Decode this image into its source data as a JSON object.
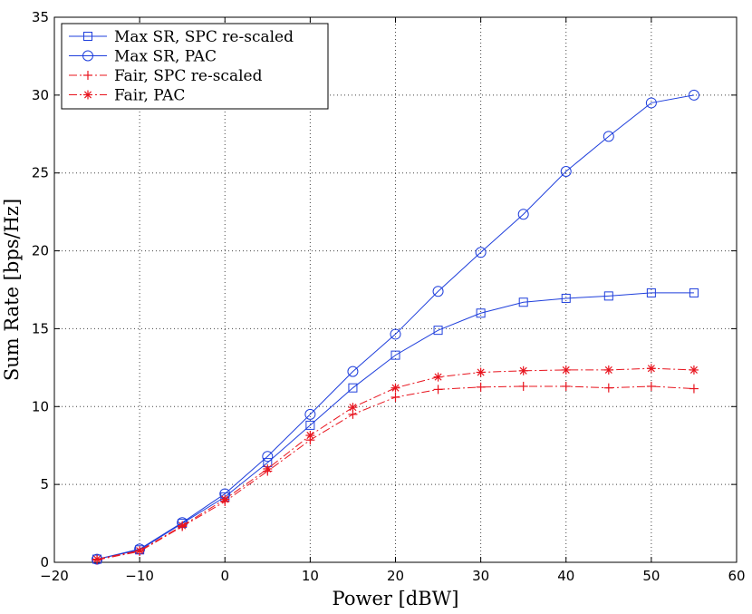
{
  "chart_data": {
    "type": "line",
    "title": "",
    "xlabel": "Power [dBW]",
    "ylabel": "Sum Rate [bps/Hz]",
    "xlim": [
      -20,
      60
    ],
    "ylim": [
      0,
      35
    ],
    "xticks": [
      -20,
      -10,
      0,
      10,
      20,
      30,
      40,
      50,
      60
    ],
    "yticks": [
      0,
      5,
      10,
      15,
      20,
      25,
      30,
      35
    ],
    "xtick_labels": [
      "−20",
      "−10",
      "0",
      "10",
      "20",
      "30",
      "40",
      "50",
      "60"
    ],
    "ytick_labels": [
      "0",
      "5",
      "10",
      "15",
      "20",
      "25",
      "30",
      "35"
    ],
    "grid": true,
    "legend_position": "top-left",
    "x": [
      -15,
      -10,
      -5,
      0,
      5,
      10,
      15,
      20,
      25,
      30,
      35,
      40,
      45,
      50,
      55
    ],
    "series": [
      {
        "name": "Max SR, SPC re-scaled",
        "color": "#1f3fdc",
        "line": "solid",
        "marker": "square",
        "values": [
          0.2,
          0.8,
          2.5,
          4.2,
          6.4,
          8.8,
          11.2,
          13.3,
          14.9,
          16.0,
          16.7,
          16.95,
          17.1,
          17.3,
          17.3
        ]
      },
      {
        "name": "Max SR, PAC",
        "color": "#1f3fdc",
        "line": "solid",
        "marker": "circle",
        "values": [
          0.2,
          0.85,
          2.55,
          4.4,
          6.8,
          9.5,
          12.25,
          14.65,
          17.4,
          19.9,
          22.35,
          25.1,
          27.35,
          29.5,
          30.0
        ]
      },
      {
        "name": "Fair, SPC re-scaled",
        "color": "#e8141e",
        "line": "dashdot",
        "marker": "plus",
        "values": [
          0.15,
          0.7,
          2.3,
          3.9,
          5.85,
          7.85,
          9.5,
          10.6,
          11.1,
          11.25,
          11.3,
          11.3,
          11.2,
          11.3,
          11.15
        ]
      },
      {
        "name": "Fair, PAC",
        "color": "#e8141e",
        "line": "dashdot",
        "marker": "star",
        "values": [
          0.2,
          0.75,
          2.35,
          4.05,
          6.0,
          8.15,
          9.95,
          11.2,
          11.9,
          12.2,
          12.3,
          12.35,
          12.35,
          12.45,
          12.35
        ]
      }
    ]
  }
}
